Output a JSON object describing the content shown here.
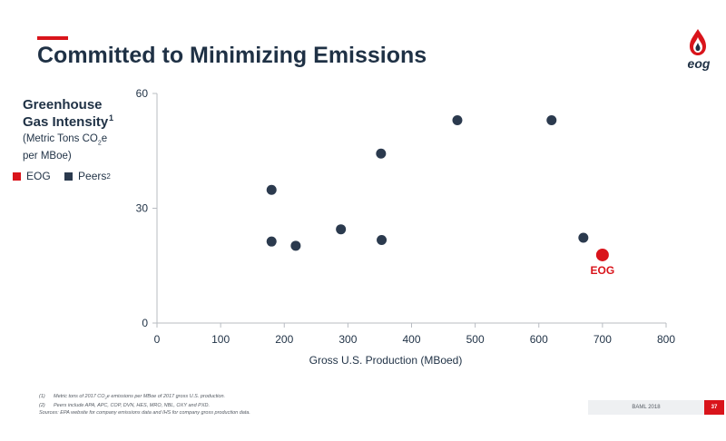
{
  "header": {
    "title": "Committed to Minimizing Emissions",
    "logo_text": "eog"
  },
  "colors": {
    "eog": "#d9141b",
    "peers": "#2b3a4e",
    "axis": "#b8bcc2",
    "text": "#1f3145"
  },
  "chart_data": {
    "type": "scatter",
    "title": "",
    "ylabel_main": "Greenhouse Gas Intensity",
    "ylabel_note_marker": "1",
    "ylabel_units_prefix": "(Metric Tons CO",
    "ylabel_units_sub": "2",
    "ylabel_units_suffix": "e per MBoe)",
    "xlabel": "Gross U.S. Production (MBoed)",
    "xlim": [
      0,
      800
    ],
    "ylim": [
      0,
      60
    ],
    "x_ticks": [
      0,
      100,
      200,
      300,
      400,
      500,
      600,
      700,
      800
    ],
    "y_ticks": [
      0,
      30,
      60
    ],
    "grid": false,
    "legend": {
      "position": "left",
      "items": [
        {
          "label": "EOG",
          "marker": "",
          "color": "#d9141b"
        },
        {
          "label": "Peers",
          "marker": "2",
          "color": "#2b3a4e"
        }
      ]
    },
    "series": [
      {
        "name": "EOG",
        "points": [
          {
            "x": 700,
            "y": 17.8
          }
        ],
        "point_label": "EOG"
      },
      {
        "name": "Peers",
        "points": [
          {
            "x": 180,
            "y": 34.8
          },
          {
            "x": 180,
            "y": 21.3
          },
          {
            "x": 218,
            "y": 20.2
          },
          {
            "x": 289,
            "y": 24.5
          },
          {
            "x": 352,
            "y": 44.3
          },
          {
            "x": 353,
            "y": 21.7
          },
          {
            "x": 472,
            "y": 53.0
          },
          {
            "x": 620,
            "y": 53.0
          },
          {
            "x": 670,
            "y": 22.3
          }
        ]
      }
    ]
  },
  "footnotes": [
    {
      "num": "(1)",
      "text_prefix": "Metric tons of 2017 CO",
      "text_sub": "2",
      "text_suffix": "e emissions per MBoe of 2017 gross U.S. production."
    },
    {
      "num": "(2)",
      "text_prefix": "Peers include APA, APC, COP, DVN, HES, MRO, NBL, OXY and PXD.",
      "text_sub": "",
      "text_suffix": ""
    }
  ],
  "sources": "Sources: EPA website for company emissions data and IHS for company gross production data.",
  "footer": {
    "event": "BAML 2018",
    "page": "37"
  }
}
